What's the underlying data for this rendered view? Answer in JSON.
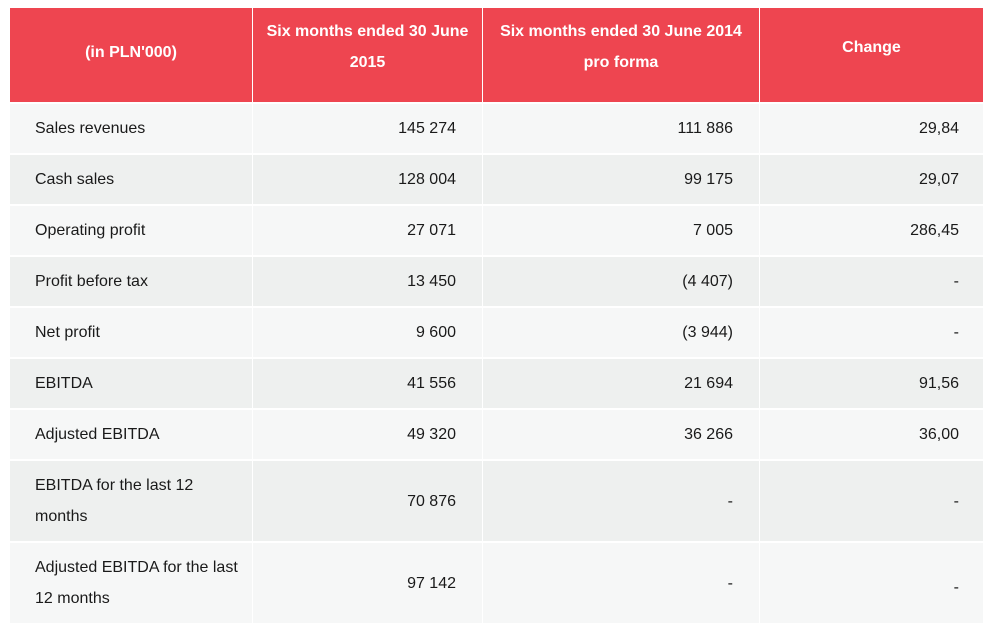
{
  "table": {
    "headers": [
      "(in PLN'000)",
      "Six months ended 30 June 2015",
      "Six months ended 30 June 2014 pro forma",
      "Change"
    ],
    "rows": [
      {
        "label": "Sales revenues",
        "h2015": "145 274",
        "h2014": "111 886",
        "change": "29,84"
      },
      {
        "label": "Cash sales",
        "h2015": "128 004",
        "h2014": "99 175",
        "change": "29,07"
      },
      {
        "label": "Operating profit",
        "h2015": "27 071",
        "h2014": "7 005",
        "change": "286,45"
      },
      {
        "label": "Profit before tax",
        "h2015": "13 450",
        "h2014": "(4 407)",
        "change": "-"
      },
      {
        "label": "Net profit",
        "h2015": "9 600",
        "h2014": "(3 944)",
        "change": "-"
      },
      {
        "label": "EBITDA",
        "h2015": "41 556",
        "h2014": "21 694",
        "change": "91,56"
      },
      {
        "label": "Adjusted EBITDA",
        "h2015": "49 320",
        "h2014": "36 266",
        "change": "36,00"
      },
      {
        "label": "EBITDA for the last 12 months",
        "h2015": "70 876",
        "h2014": "-",
        "change": "-"
      },
      {
        "label": "Adjusted EBITDA for the last 12 months",
        "h2015": "97 142",
        "h2014": "-",
        "change": "-"
      }
    ]
  },
  "colors": {
    "header_bg": "#ee4550",
    "header_text": "#ffffff",
    "row_light": "#f6f7f7",
    "row_dark": "#eef0ef"
  }
}
